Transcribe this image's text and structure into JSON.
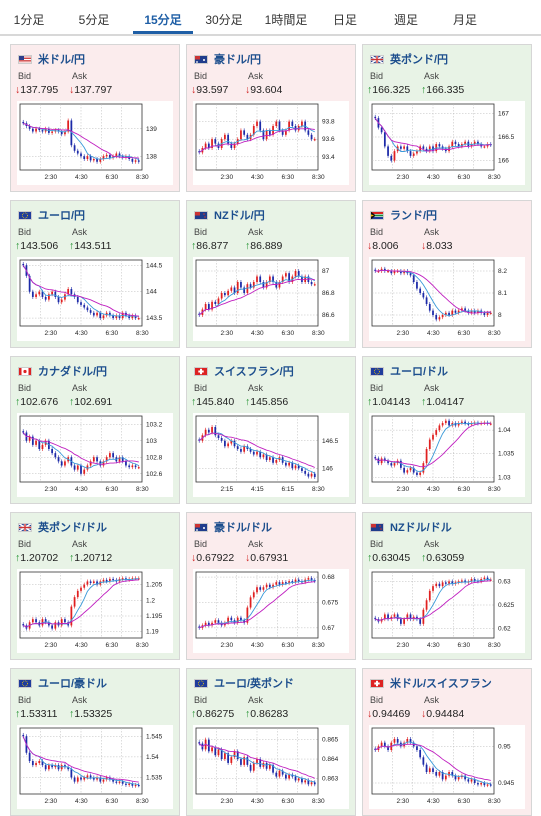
{
  "tabs": [
    "1分足",
    "5分足",
    "15分足",
    "30分足",
    "1時間足",
    "日足",
    "週足",
    "月足"
  ],
  "active_tab": 2,
  "bid_label": "Bid",
  "ask_label": "Ask",
  "colors": {
    "up_bg": "#e8f3e6",
    "down_bg": "#fbeced",
    "title": "#1c4e8d",
    "up": "#1b8f2a",
    "down": "#d02020",
    "candle_up": "#e02020",
    "candle_down": "#1c2aa8",
    "ma_short": "#3a9ad9",
    "ma_long": "#c020c0"
  },
  "cards": [
    {
      "name": "米ドル/円",
      "trend": "down",
      "flag": "us",
      "bid": "137.795",
      "ask": "137.797",
      "chart": {
        "y_ticks": [
          "139",
          "138"
        ],
        "y_tick_vals": [
          139,
          138
        ],
        "y_range": [
          137.5,
          139.9
        ],
        "x_ticks": [
          "2:30",
          "4:30",
          "6:30",
          "8:30"
        ],
        "closes": [
          139.2,
          139.1,
          139.0,
          138.9,
          139.0,
          138.95,
          138.9,
          139.0,
          138.85,
          138.9,
          138.95,
          138.9,
          138.8,
          138.9,
          139.3,
          138.4,
          138.2,
          138.1,
          138.0,
          137.9,
          138.0,
          137.85,
          137.9,
          137.8,
          137.9,
          138.0,
          138.05,
          137.95,
          138.0,
          138.1,
          138.0,
          137.95,
          138.0,
          137.9,
          137.8,
          137.85,
          137.8
        ]
      }
    },
    {
      "name": "豪ドル/円",
      "trend": "down",
      "flag": "au",
      "bid": "93.597",
      "ask": "93.604",
      "chart": {
        "y_ticks": [
          "93.8",
          "93.6",
          "93.4"
        ],
        "y_tick_vals": [
          93.8,
          93.6,
          93.4
        ],
        "y_range": [
          93.25,
          94.0
        ],
        "x_ticks": [
          "2:30",
          "4:30",
          "6:30",
          "8:30"
        ],
        "closes": [
          93.45,
          93.5,
          93.55,
          93.5,
          93.6,
          93.55,
          93.5,
          93.6,
          93.65,
          93.55,
          93.5,
          93.55,
          93.6,
          93.7,
          93.65,
          93.6,
          93.65,
          93.75,
          93.8,
          93.7,
          93.6,
          93.7,
          93.65,
          93.75,
          93.8,
          93.7,
          93.65,
          93.7,
          93.8,
          93.75,
          93.7,
          93.75,
          93.8,
          93.7,
          93.65,
          93.6,
          93.6
        ]
      }
    },
    {
      "name": "英ポンド/円",
      "trend": "up",
      "flag": "gb",
      "bid": "166.325",
      "ask": "166.335",
      "chart": {
        "y_ticks": [
          "167",
          "166.5",
          "166"
        ],
        "y_tick_vals": [
          167,
          166.5,
          166
        ],
        "y_range": [
          165.8,
          167.2
        ],
        "x_ticks": [
          "2:30",
          "4:30",
          "6:30",
          "8:30"
        ],
        "closes": [
          166.9,
          166.7,
          166.6,
          166.3,
          166.1,
          166.0,
          166.2,
          166.3,
          166.25,
          166.3,
          166.2,
          166.1,
          166.15,
          166.2,
          166.3,
          166.25,
          166.2,
          166.3,
          166.2,
          166.35,
          166.3,
          166.25,
          166.2,
          166.3,
          166.4,
          166.35,
          166.3,
          166.35,
          166.4,
          166.3,
          166.35,
          166.4,
          166.35,
          166.3,
          166.3,
          166.35,
          166.33
        ]
      }
    },
    {
      "name": "ユーロ/円",
      "trend": "up",
      "flag": "eu",
      "bid": "143.506",
      "ask": "143.511",
      "chart": {
        "y_ticks": [
          "144.5",
          "144",
          "143.5"
        ],
        "y_tick_vals": [
          144.5,
          144,
          143.5
        ],
        "y_range": [
          143.35,
          144.6
        ],
        "x_ticks": [
          "2:30",
          "4:30",
          "6:30",
          "8:30"
        ],
        "closes": [
          144.5,
          144.3,
          144.0,
          143.9,
          143.95,
          144.0,
          143.9,
          143.85,
          143.95,
          144.0,
          143.9,
          143.8,
          143.85,
          143.95,
          144.05,
          143.95,
          143.9,
          143.8,
          143.75,
          143.7,
          143.65,
          143.6,
          143.55,
          143.6,
          143.5,
          143.55,
          143.6,
          143.55,
          143.5,
          143.55,
          143.5,
          143.6,
          143.55,
          143.5,
          143.55,
          143.5,
          143.5
        ]
      }
    },
    {
      "name": "NZドル/円",
      "trend": "up",
      "flag": "nz",
      "bid": "86.877",
      "ask": "86.889",
      "chart": {
        "y_ticks": [
          "87",
          "86.8",
          "86.6"
        ],
        "y_tick_vals": [
          87,
          86.8,
          86.6
        ],
        "y_range": [
          86.5,
          87.1
        ],
        "x_ticks": [
          "2:30",
          "4:30",
          "6:30",
          "8:30"
        ],
        "closes": [
          86.6,
          86.65,
          86.7,
          86.65,
          86.72,
          86.7,
          86.75,
          86.8,
          86.78,
          86.82,
          86.85,
          86.8,
          86.9,
          86.85,
          86.8,
          86.88,
          86.85,
          86.9,
          86.95,
          86.9,
          86.85,
          86.9,
          86.95,
          86.9,
          86.85,
          86.9,
          86.95,
          86.98,
          86.9,
          86.95,
          87.0,
          86.95,
          86.9,
          86.95,
          86.9,
          86.88,
          86.88
        ]
      }
    },
    {
      "name": "ランド/円",
      "trend": "down",
      "flag": "za",
      "bid": "8.006",
      "ask": "8.033",
      "chart": {
        "y_ticks": [
          "8.2",
          "8.1",
          "8"
        ],
        "y_tick_vals": [
          8.2,
          8.1,
          8.0
        ],
        "y_range": [
          7.95,
          8.25
        ],
        "x_ticks": [
          "2:30",
          "4:30",
          "6:30",
          "8:30"
        ],
        "closes": [
          8.2,
          8.2,
          8.21,
          8.2,
          8.2,
          8.19,
          8.2,
          8.2,
          8.19,
          8.2,
          8.19,
          8.18,
          8.15,
          8.12,
          8.1,
          8.08,
          8.05,
          8.02,
          8.0,
          7.98,
          7.99,
          8.0,
          8.01,
          8.0,
          8.02,
          8.01,
          8.02,
          8.03,
          8.02,
          8.01,
          8.02,
          8.01,
          8.02,
          8.01,
          8.0,
          8.01,
          8.01
        ]
      }
    },
    {
      "name": "カナダドル/円",
      "trend": "up",
      "flag": "ca",
      "bid": "102.676",
      "ask": "102.691",
      "chart": {
        "y_ticks": [
          "103.2",
          "103",
          "102.8",
          "102.6"
        ],
        "y_tick_vals": [
          103.2,
          103,
          102.8,
          102.6
        ],
        "y_range": [
          102.5,
          103.3
        ],
        "x_ticks": [
          "2:30",
          "4:30",
          "6:30",
          "8:30"
        ],
        "closes": [
          103.1,
          103.0,
          103.05,
          102.95,
          103.0,
          102.9,
          102.95,
          103.0,
          102.9,
          102.85,
          102.8,
          102.75,
          102.7,
          102.75,
          102.8,
          102.7,
          102.65,
          102.7,
          102.6,
          102.65,
          102.7,
          102.75,
          102.8,
          102.75,
          102.7,
          102.75,
          102.8,
          102.85,
          102.8,
          102.75,
          102.8,
          102.75,
          102.7,
          102.68,
          102.7,
          102.68,
          102.68
        ]
      }
    },
    {
      "name": "スイスフラン/円",
      "trend": "up",
      "flag": "ch",
      "bid": "145.840",
      "ask": "145.856",
      "chart": {
        "y_ticks": [
          "146.5",
          "146"
        ],
        "y_tick_vals": [
          146.5,
          146
        ],
        "y_range": [
          145.75,
          146.95
        ],
        "x_ticks": [
          "2:15",
          "4:15",
          "6:15",
          "8:30"
        ],
        "closes": [
          146.5,
          146.6,
          146.7,
          146.65,
          146.75,
          146.6,
          146.55,
          146.5,
          146.4,
          146.45,
          146.5,
          146.4,
          146.35,
          146.3,
          146.4,
          146.35,
          146.3,
          146.25,
          146.3,
          146.2,
          146.25,
          146.15,
          146.2,
          146.1,
          146.15,
          146.2,
          146.1,
          146.05,
          146.1,
          146.0,
          146.05,
          146.0,
          145.95,
          145.9,
          145.85,
          145.9,
          145.84
        ]
      }
    },
    {
      "name": "ユーロ/ドル",
      "trend": "up",
      "flag": "eu",
      "bid": "1.04143",
      "ask": "1.04147",
      "chart": {
        "y_ticks": [
          "1.04",
          "1.035",
          "1.03"
        ],
        "y_tick_vals": [
          1.04,
          1.035,
          1.03
        ],
        "y_range": [
          1.029,
          1.043
        ],
        "x_ticks": [
          "2:30",
          "4:30",
          "6:30",
          "8:30"
        ],
        "closes": [
          1.034,
          1.033,
          1.034,
          1.0335,
          1.033,
          1.0325,
          1.033,
          1.0335,
          1.032,
          1.031,
          1.0315,
          1.032,
          1.031,
          1.0305,
          1.031,
          1.033,
          1.036,
          1.038,
          1.039,
          1.04,
          1.041,
          1.0415,
          1.042,
          1.041,
          1.0415,
          1.041,
          1.0415,
          1.0418,
          1.0414,
          1.0412,
          1.0415,
          1.0416,
          1.0414,
          1.0415,
          1.0416,
          1.0414,
          1.0414
        ]
      }
    },
    {
      "name": "英ポンド/ドル",
      "trend": "up",
      "flag": "gb",
      "bid": "1.20702",
      "ask": "1.20712",
      "chart": {
        "y_ticks": [
          "1.205",
          "1.2",
          "1.195",
          "1.19"
        ],
        "y_tick_vals": [
          1.205,
          1.2,
          1.195,
          1.19
        ],
        "y_range": [
          1.188,
          1.209
        ],
        "x_ticks": [
          "2:30",
          "4:30",
          "6:30",
          "8:30"
        ],
        "closes": [
          1.192,
          1.191,
          1.193,
          1.194,
          1.193,
          1.192,
          1.194,
          1.193,
          1.192,
          1.191,
          1.193,
          1.192,
          1.194,
          1.193,
          1.192,
          1.198,
          1.201,
          1.203,
          1.204,
          1.205,
          1.206,
          1.2055,
          1.206,
          1.205,
          1.206,
          1.2065,
          1.206,
          1.2068,
          1.2065,
          1.206,
          1.2068,
          1.207,
          1.2065,
          1.2068,
          1.207,
          1.207,
          1.207
        ]
      }
    },
    {
      "name": "豪ドル/ドル",
      "trend": "down",
      "flag": "au",
      "bid": "0.67922",
      "ask": "0.67931",
      "chart": {
        "y_ticks": [
          "0.68",
          "0.675",
          "0.67"
        ],
        "y_tick_vals": [
          0.68,
          0.675,
          0.67
        ],
        "y_range": [
          0.668,
          0.681
        ],
        "x_ticks": [
          "2:30",
          "4:30",
          "6:30",
          "8:30"
        ],
        "closes": [
          0.67,
          0.6705,
          0.671,
          0.6705,
          0.671,
          0.6715,
          0.671,
          0.6705,
          0.671,
          0.672,
          0.6715,
          0.671,
          0.672,
          0.6715,
          0.671,
          0.674,
          0.676,
          0.677,
          0.678,
          0.6775,
          0.678,
          0.6785,
          0.678,
          0.6785,
          0.679,
          0.6785,
          0.679,
          0.6788,
          0.6792,
          0.679,
          0.6795,
          0.6792,
          0.679,
          0.6795,
          0.6798,
          0.6794,
          0.6792
        ]
      }
    },
    {
      "name": "NZドル/ドル",
      "trend": "up",
      "flag": "nz",
      "bid": "0.63045",
      "ask": "0.63059",
      "chart": {
        "y_ticks": [
          "0.63",
          "0.625",
          "0.62"
        ],
        "y_tick_vals": [
          0.63,
          0.625,
          0.62
        ],
        "y_range": [
          0.618,
          0.632
        ],
        "x_ticks": [
          "2:30",
          "4:30",
          "6:30",
          "8:30"
        ],
        "closes": [
          0.622,
          0.6215,
          0.622,
          0.623,
          0.622,
          0.6225,
          0.623,
          0.622,
          0.621,
          0.622,
          0.623,
          0.622,
          0.6225,
          0.622,
          0.621,
          0.624,
          0.626,
          0.628,
          0.629,
          0.6295,
          0.629,
          0.6298,
          0.6295,
          0.63,
          0.6295,
          0.6298,
          0.63,
          0.6302,
          0.6298,
          0.63,
          0.6305,
          0.6302,
          0.63,
          0.6305,
          0.6308,
          0.6304,
          0.6304
        ]
      }
    },
    {
      "name": "ユーロ/豪ドル",
      "trend": "up",
      "flag": "eu",
      "bid": "1.53311",
      "ask": "1.53325",
      "chart": {
        "y_ticks": [
          "1.545",
          "1.54",
          "1.535"
        ],
        "y_tick_vals": [
          1.545,
          1.54,
          1.535
        ],
        "y_range": [
          1.531,
          1.547
        ],
        "x_ticks": [
          "2:30",
          "4:30",
          "6:30",
          "8:30"
        ],
        "closes": [
          1.545,
          1.541,
          1.539,
          1.538,
          1.5385,
          1.539,
          1.538,
          1.537,
          1.538,
          1.5375,
          1.538,
          1.537,
          1.538,
          1.5375,
          1.537,
          1.535,
          1.534,
          1.535,
          1.5345,
          1.535,
          1.5355,
          1.535,
          1.5345,
          1.535,
          1.534,
          1.5345,
          1.535,
          1.5345,
          1.534,
          1.5338,
          1.534,
          1.5335,
          1.5332,
          1.5335,
          1.533,
          1.5332,
          1.5331
        ]
      }
    },
    {
      "name": "ユーロ/英ポンド",
      "trend": "up",
      "flag": "eu",
      "bid": "0.86275",
      "ask": "0.86283",
      "chart": {
        "y_ticks": [
          "0.865",
          "0.864",
          "0.863"
        ],
        "y_tick_vals": [
          0.865,
          0.864,
          0.863
        ],
        "y_range": [
          0.8622,
          0.8656
        ],
        "x_ticks": [
          "2:30",
          "4:30",
          "6:30",
          "8:30"
        ],
        "closes": [
          0.8648,
          0.8645,
          0.865,
          0.8644,
          0.8646,
          0.8642,
          0.8645,
          0.864,
          0.8643,
          0.8638,
          0.8641,
          0.8644,
          0.864,
          0.8637,
          0.8641,
          0.8637,
          0.8634,
          0.8638,
          0.864,
          0.8636,
          0.8638,
          0.8635,
          0.8637,
          0.8633,
          0.8631,
          0.8634,
          0.8632,
          0.863,
          0.8632,
          0.8631,
          0.8629,
          0.863,
          0.8628,
          0.8629,
          0.8627,
          0.8628,
          0.8627
        ]
      }
    },
    {
      "name": "米ドル/スイスフラン",
      "trend": "down",
      "flag": "ch",
      "bid": "0.94469",
      "ask": "0.94484",
      "chart": {
        "y_ticks": [
          "0.95",
          "0.945"
        ],
        "y_tick_vals": [
          0.95,
          0.945
        ],
        "y_range": [
          0.9435,
          0.9525
        ],
        "x_ticks": [
          "2:30",
          "4:30",
          "6:30",
          "8:30"
        ],
        "closes": [
          0.9495,
          0.95,
          0.9505,
          0.95,
          0.9495,
          0.9505,
          0.951,
          0.9505,
          0.95,
          0.9505,
          0.951,
          0.9505,
          0.95,
          0.9495,
          0.9485,
          0.9475,
          0.9465,
          0.947,
          0.9465,
          0.946,
          0.9465,
          0.9455,
          0.946,
          0.9465,
          0.946,
          0.9455,
          0.9458,
          0.946,
          0.9455,
          0.9452,
          0.9455,
          0.945,
          0.9448,
          0.945,
          0.9447,
          0.9448,
          0.9447
        ]
      }
    }
  ]
}
